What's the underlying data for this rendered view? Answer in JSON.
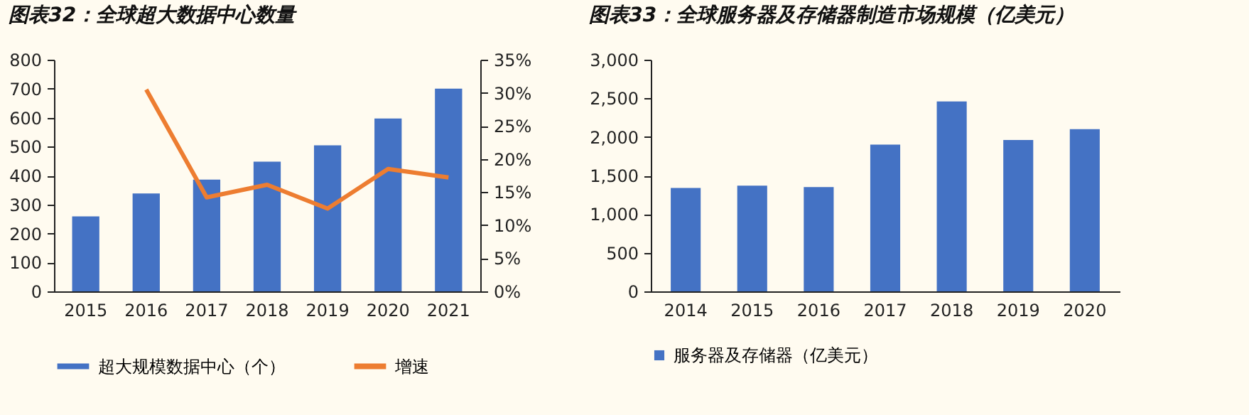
{
  "chart_data": [
    {
      "type": "bar",
      "title": "图表32：全球超大数据中心数量",
      "categories": [
        "2015",
        "2016",
        "2017",
        "2018",
        "2019",
        "2020",
        "2021"
      ],
      "series": [
        {
          "name": "超大规模数据中心（个）",
          "color": "#4472c4",
          "values": [
            259,
            338,
            386,
            448,
            504,
            597,
            700
          ]
        },
        {
          "name": "增速",
          "type": "line",
          "axis": "y2",
          "color": "#ed7d31",
          "values": [
            null,
            30.5,
            14.2,
            16.1,
            12.5,
            18.5,
            17.2
          ]
        }
      ],
      "ylim": [
        0,
        800
      ],
      "yticks": [
        0,
        100,
        200,
        300,
        400,
        500,
        600,
        700,
        800
      ],
      "y2lim": [
        0,
        35
      ],
      "y2ticks": [
        {
          "value": 0,
          "label": "0%"
        },
        {
          "value": 5,
          "label": "5%"
        },
        {
          "value": 10,
          "label": "10%"
        },
        {
          "value": 15,
          "label": "15%"
        },
        {
          "value": 20,
          "label": "20%"
        },
        {
          "value": 25,
          "label": "25%"
        },
        {
          "value": 30,
          "label": "30%"
        },
        {
          "value": 35,
          "label": "35%"
        }
      ],
      "legend": "bottom",
      "grid": false,
      "marker": "none"
    },
    {
      "type": "bar",
      "title": "图表33：全球服务器及存储器制造市场规模（亿美元）",
      "categories": [
        "2014",
        "2015",
        "2016",
        "2017",
        "2018",
        "2019",
        "2020"
      ],
      "series": [
        {
          "name": "服务器及存储器（亿美元）",
          "color": "#4472c4",
          "values": [
            1340,
            1370,
            1350,
            1900,
            2460,
            1960,
            2100
          ]
        }
      ],
      "ylim": [
        0,
        3000
      ],
      "yticks": [
        0,
        500,
        {
          "value": 1000,
          "label": "1,000"
        },
        {
          "value": 1500,
          "label": "1,500"
        },
        {
          "value": 2000,
          "label": "2,000"
        },
        {
          "value": 2500,
          "label": "2,500"
        },
        {
          "value": 3000,
          "label": "3,000"
        }
      ],
      "legend": "bottom",
      "grid": false
    }
  ]
}
